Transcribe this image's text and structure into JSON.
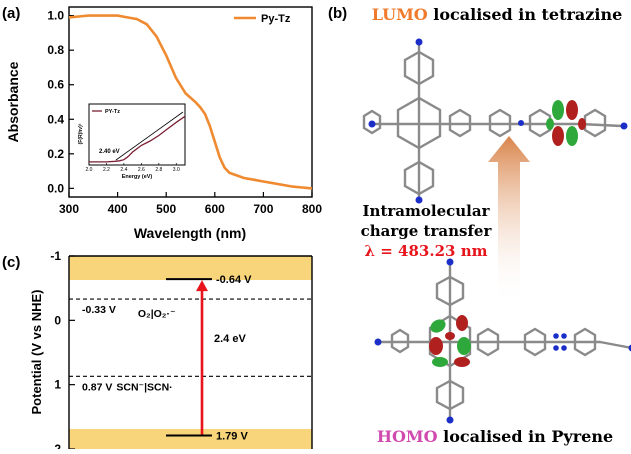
{
  "chart_data": [
    {
      "panel_label": "(a)",
      "type": "line",
      "xlabel": "Wavelength (nm)",
      "ylabel": "Absorbance",
      "xlim": [
        300,
        800
      ],
      "ylim": [
        -0.05,
        1.05
      ],
      "xticks": [
        "300",
        "400",
        "500",
        "600",
        "700",
        "800"
      ],
      "yticks": [
        "0.0",
        "0.2",
        "0.4",
        "0.6",
        "0.8",
        "1.0"
      ],
      "legend_position": "top-right",
      "series_color": "#f08a30",
      "series": [
        {
          "name": "Py-Tz",
          "x": [
            300,
            320,
            340,
            360,
            380,
            400,
            420,
            440,
            460,
            480,
            500,
            520,
            540,
            560,
            570,
            580,
            590,
            600,
            610,
            620,
            630,
            640,
            660,
            680,
            700,
            720,
            740,
            760,
            780,
            800
          ],
          "y": [
            0.99,
            0.995,
            1.0,
            1.0,
            1.0,
            1.0,
            0.99,
            0.98,
            0.95,
            0.88,
            0.77,
            0.64,
            0.55,
            0.5,
            0.47,
            0.43,
            0.36,
            0.27,
            0.18,
            0.12,
            0.09,
            0.08,
            0.06,
            0.05,
            0.04,
            0.03,
            0.02,
            0.01,
            0.005,
            0.0
          ]
        }
      ],
      "inset": {
        "type": "line",
        "xlabel": "Energy (eV)",
        "ylabel": "(F(R)hν)²",
        "xlim": [
          2.0,
          3.1
        ],
        "xticks": [
          "2.0",
          "2.2",
          "2.4",
          "2.6",
          "2.8",
          "3.0"
        ],
        "annotation": "2.40 eV",
        "series_color": "#7a1f33",
        "series": [
          {
            "name": "PY-Tz",
            "x": [
              2.0,
              2.2,
              2.3,
              2.35,
              2.4,
              2.45,
              2.5,
              2.6,
              2.7,
              2.8,
              2.9,
              3.0,
              3.1
            ],
            "y": [
              0.02,
              0.02,
              0.03,
              0.04,
              0.06,
              0.12,
              0.2,
              0.32,
              0.4,
              0.5,
              0.62,
              0.74,
              0.85
            ]
          }
        ]
      }
    },
    {
      "panel_label": "(c)",
      "type": "energy-level diagram",
      "ylabel": "Potential (V vs NHE)",
      "ylim": [
        -1,
        2
      ],
      "yticks": [
        "-1",
        "0",
        "1",
        "2"
      ],
      "band_color": "#f8d57a",
      "arrow_color": "#e8141b",
      "levels": [
        {
          "value": -0.64,
          "label": "-0.64 V",
          "style": "solid"
        },
        {
          "value": -0.33,
          "label": "-0.33 V",
          "style": "dashed",
          "couple": "O₂|O₂·⁻"
        },
        {
          "value": 0.87,
          "label": "0.87 V",
          "style": "dashed",
          "couple": "SCN⁻|SCN·"
        },
        {
          "value": 1.79,
          "label": "1.79 V",
          "style": "solid"
        }
      ],
      "gap_label": "2.4 eV"
    }
  ],
  "panel_b": {
    "panel_label": "(b)",
    "title_highlight": "LUMO",
    "title_rest": " localised in tetrazine",
    "middle_line1": "Intramolecular",
    "middle_line2": "charge transfer",
    "lambda_text": "λ = 483.23 nm",
    "bottom_highlight": "HOMO",
    "bottom_rest": " localised in Pyrene",
    "lumo_color": "#f07a2c",
    "homo_color": "#d04aae",
    "lambda_color": "#e8141b",
    "arrow_color": "#d9844a"
  }
}
